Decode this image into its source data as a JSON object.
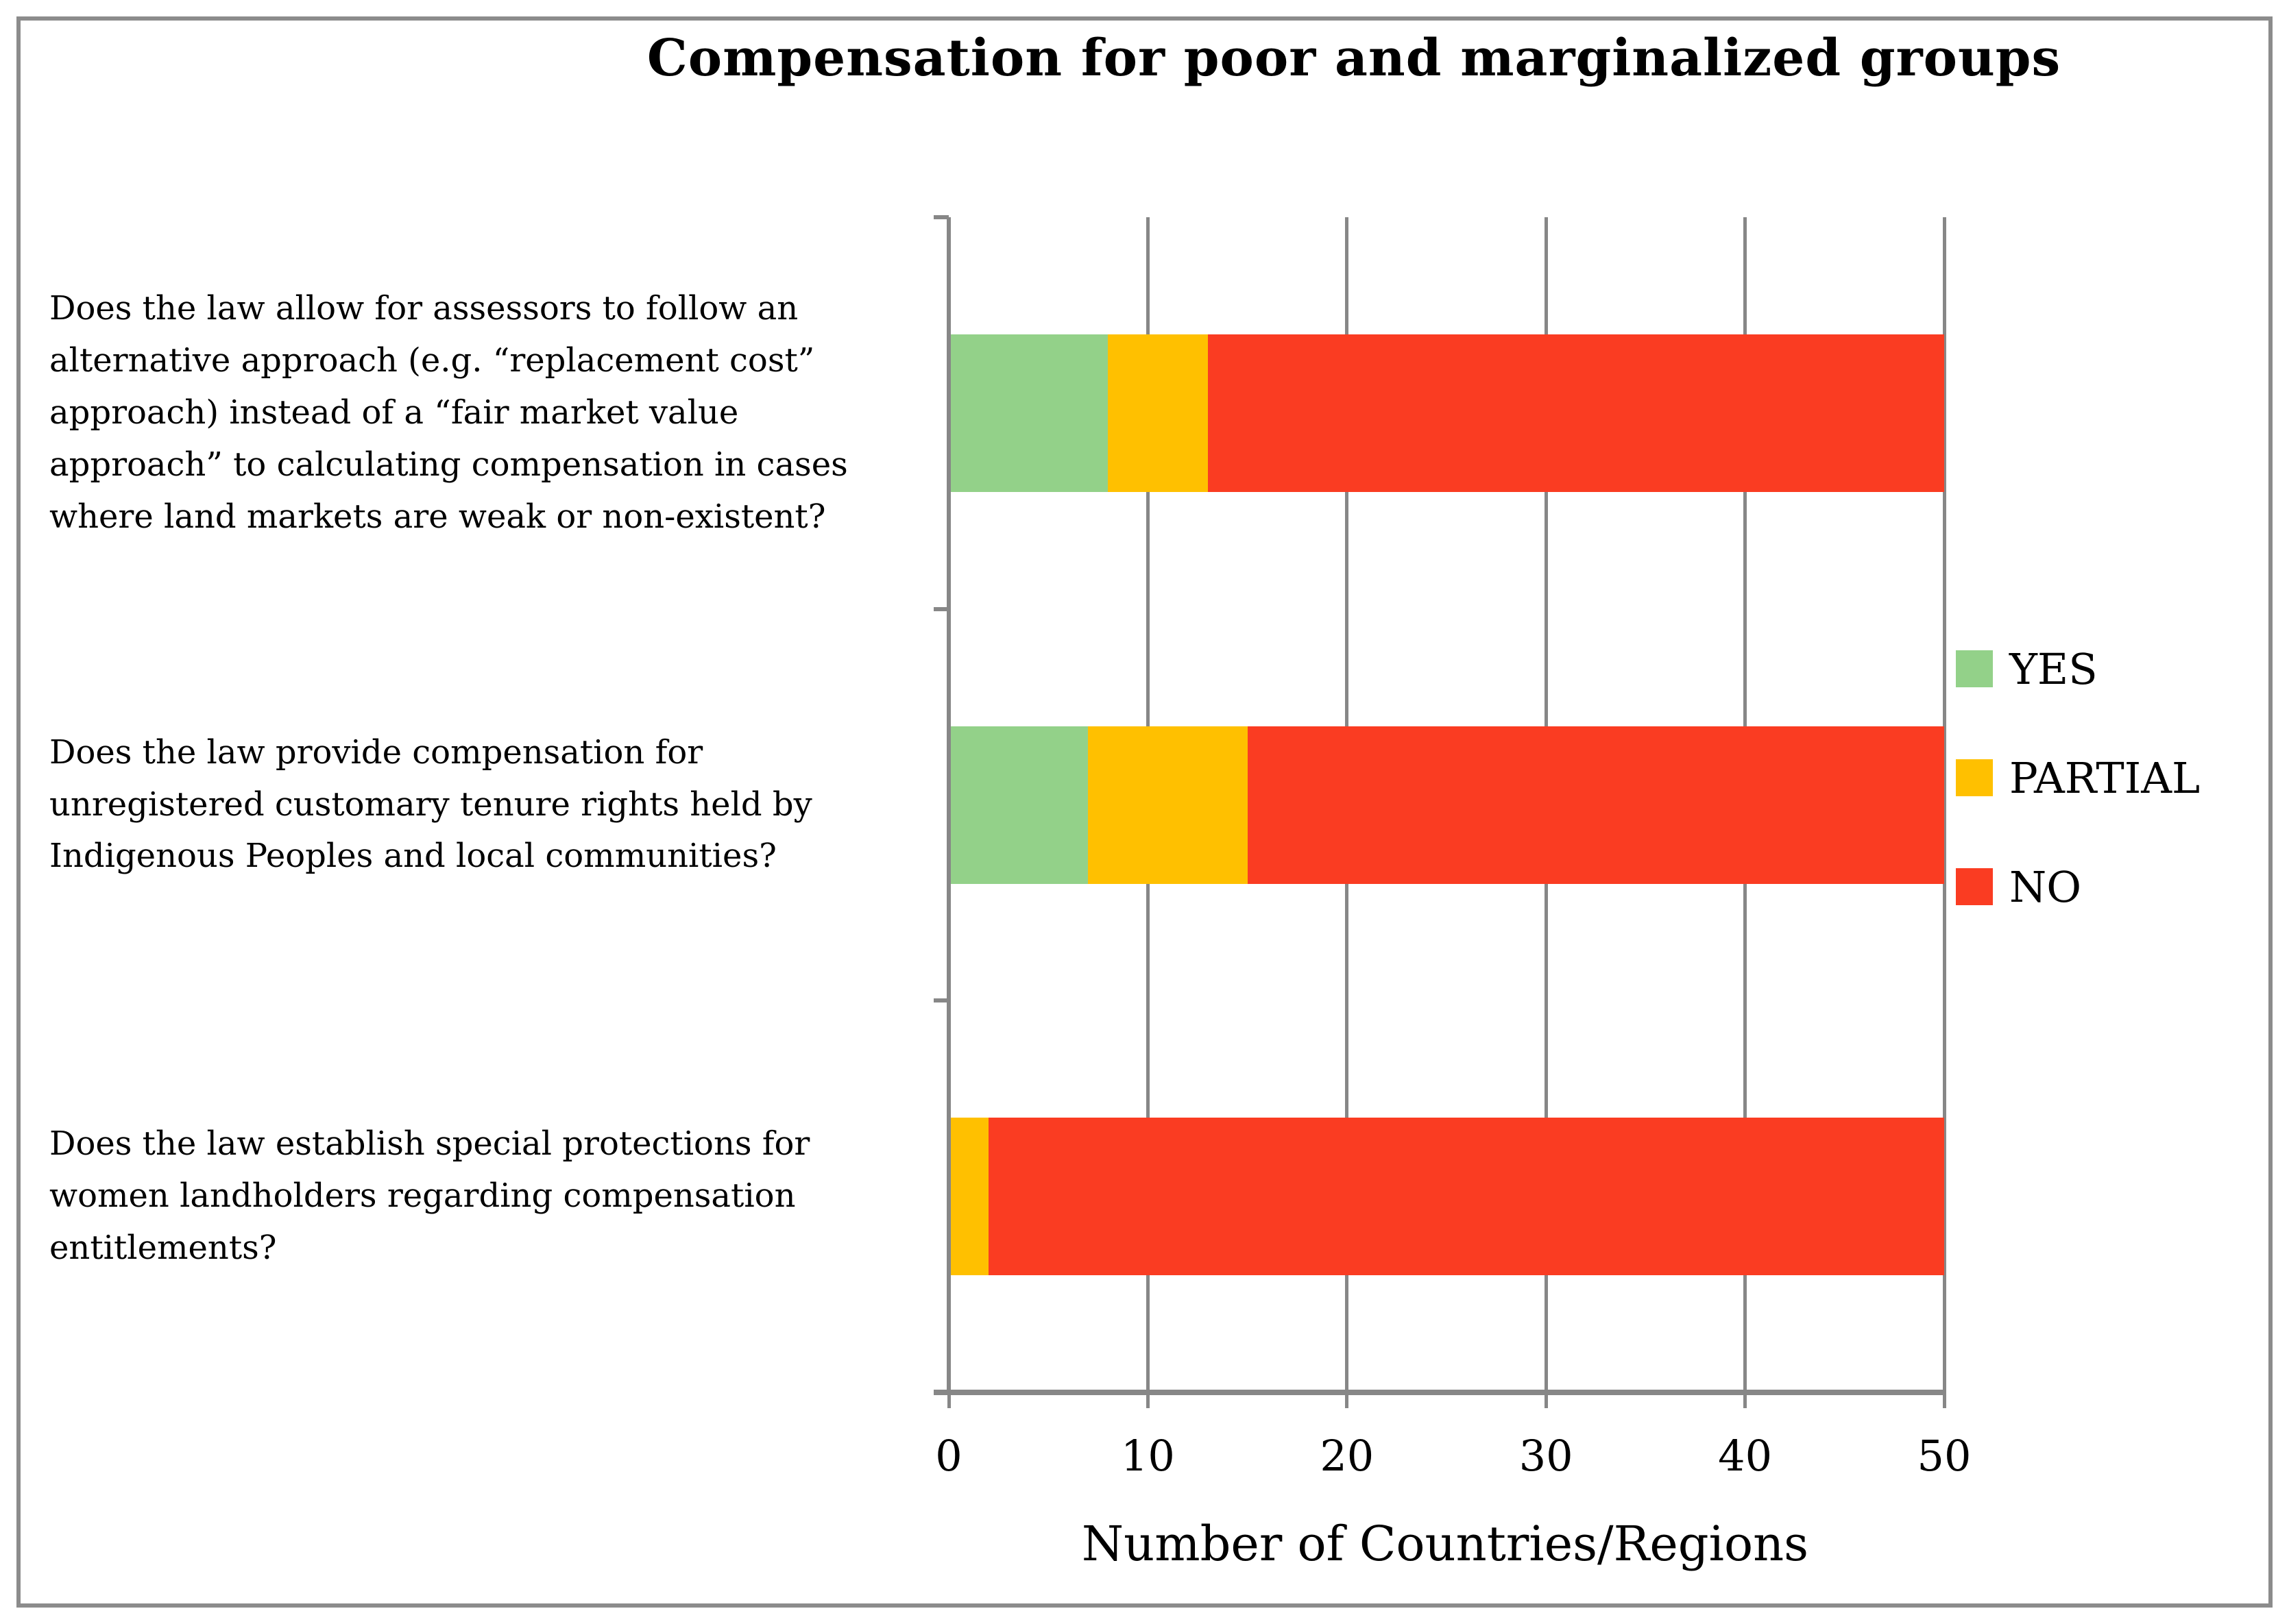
{
  "figure": {
    "border_color": "#8c8c8c",
    "background": "#ffffff",
    "axis_color": "#878787"
  },
  "chart_data": {
    "type": "bar",
    "orientation": "horizontal",
    "stacked": true,
    "title": "Compensation for poor and marginalized groups",
    "xlabel": "Number of Countries/Regions",
    "xlim": [
      0,
      50
    ],
    "xticks": [
      "0",
      "10",
      "20",
      "30",
      "40",
      "50"
    ],
    "grid": true,
    "legend_position": "right",
    "categories": [
      "Does the law allow for assessors to follow an alternative approach (e.g. “replacement cost” approach) instead of a “fair market value approach” to calculating compensation in cases where land markets are weak or non-existent?",
      "Does the law provide compensation for unregistered customary tenure rights held by Indigenous Peoples and local communities?",
      "Does the law establish special protections for women landholders regarding compensation entitlements?"
    ],
    "series": [
      {
        "name": "YES",
        "color": "#93D189",
        "values": [
          8,
          7,
          0
        ]
      },
      {
        "name": "PARTIAL",
        "color": "#FFC000",
        "values": [
          5,
          8,
          2
        ]
      },
      {
        "name": "NO",
        "color": "#FA3C22",
        "values": [
          37,
          35,
          48
        ]
      }
    ]
  }
}
